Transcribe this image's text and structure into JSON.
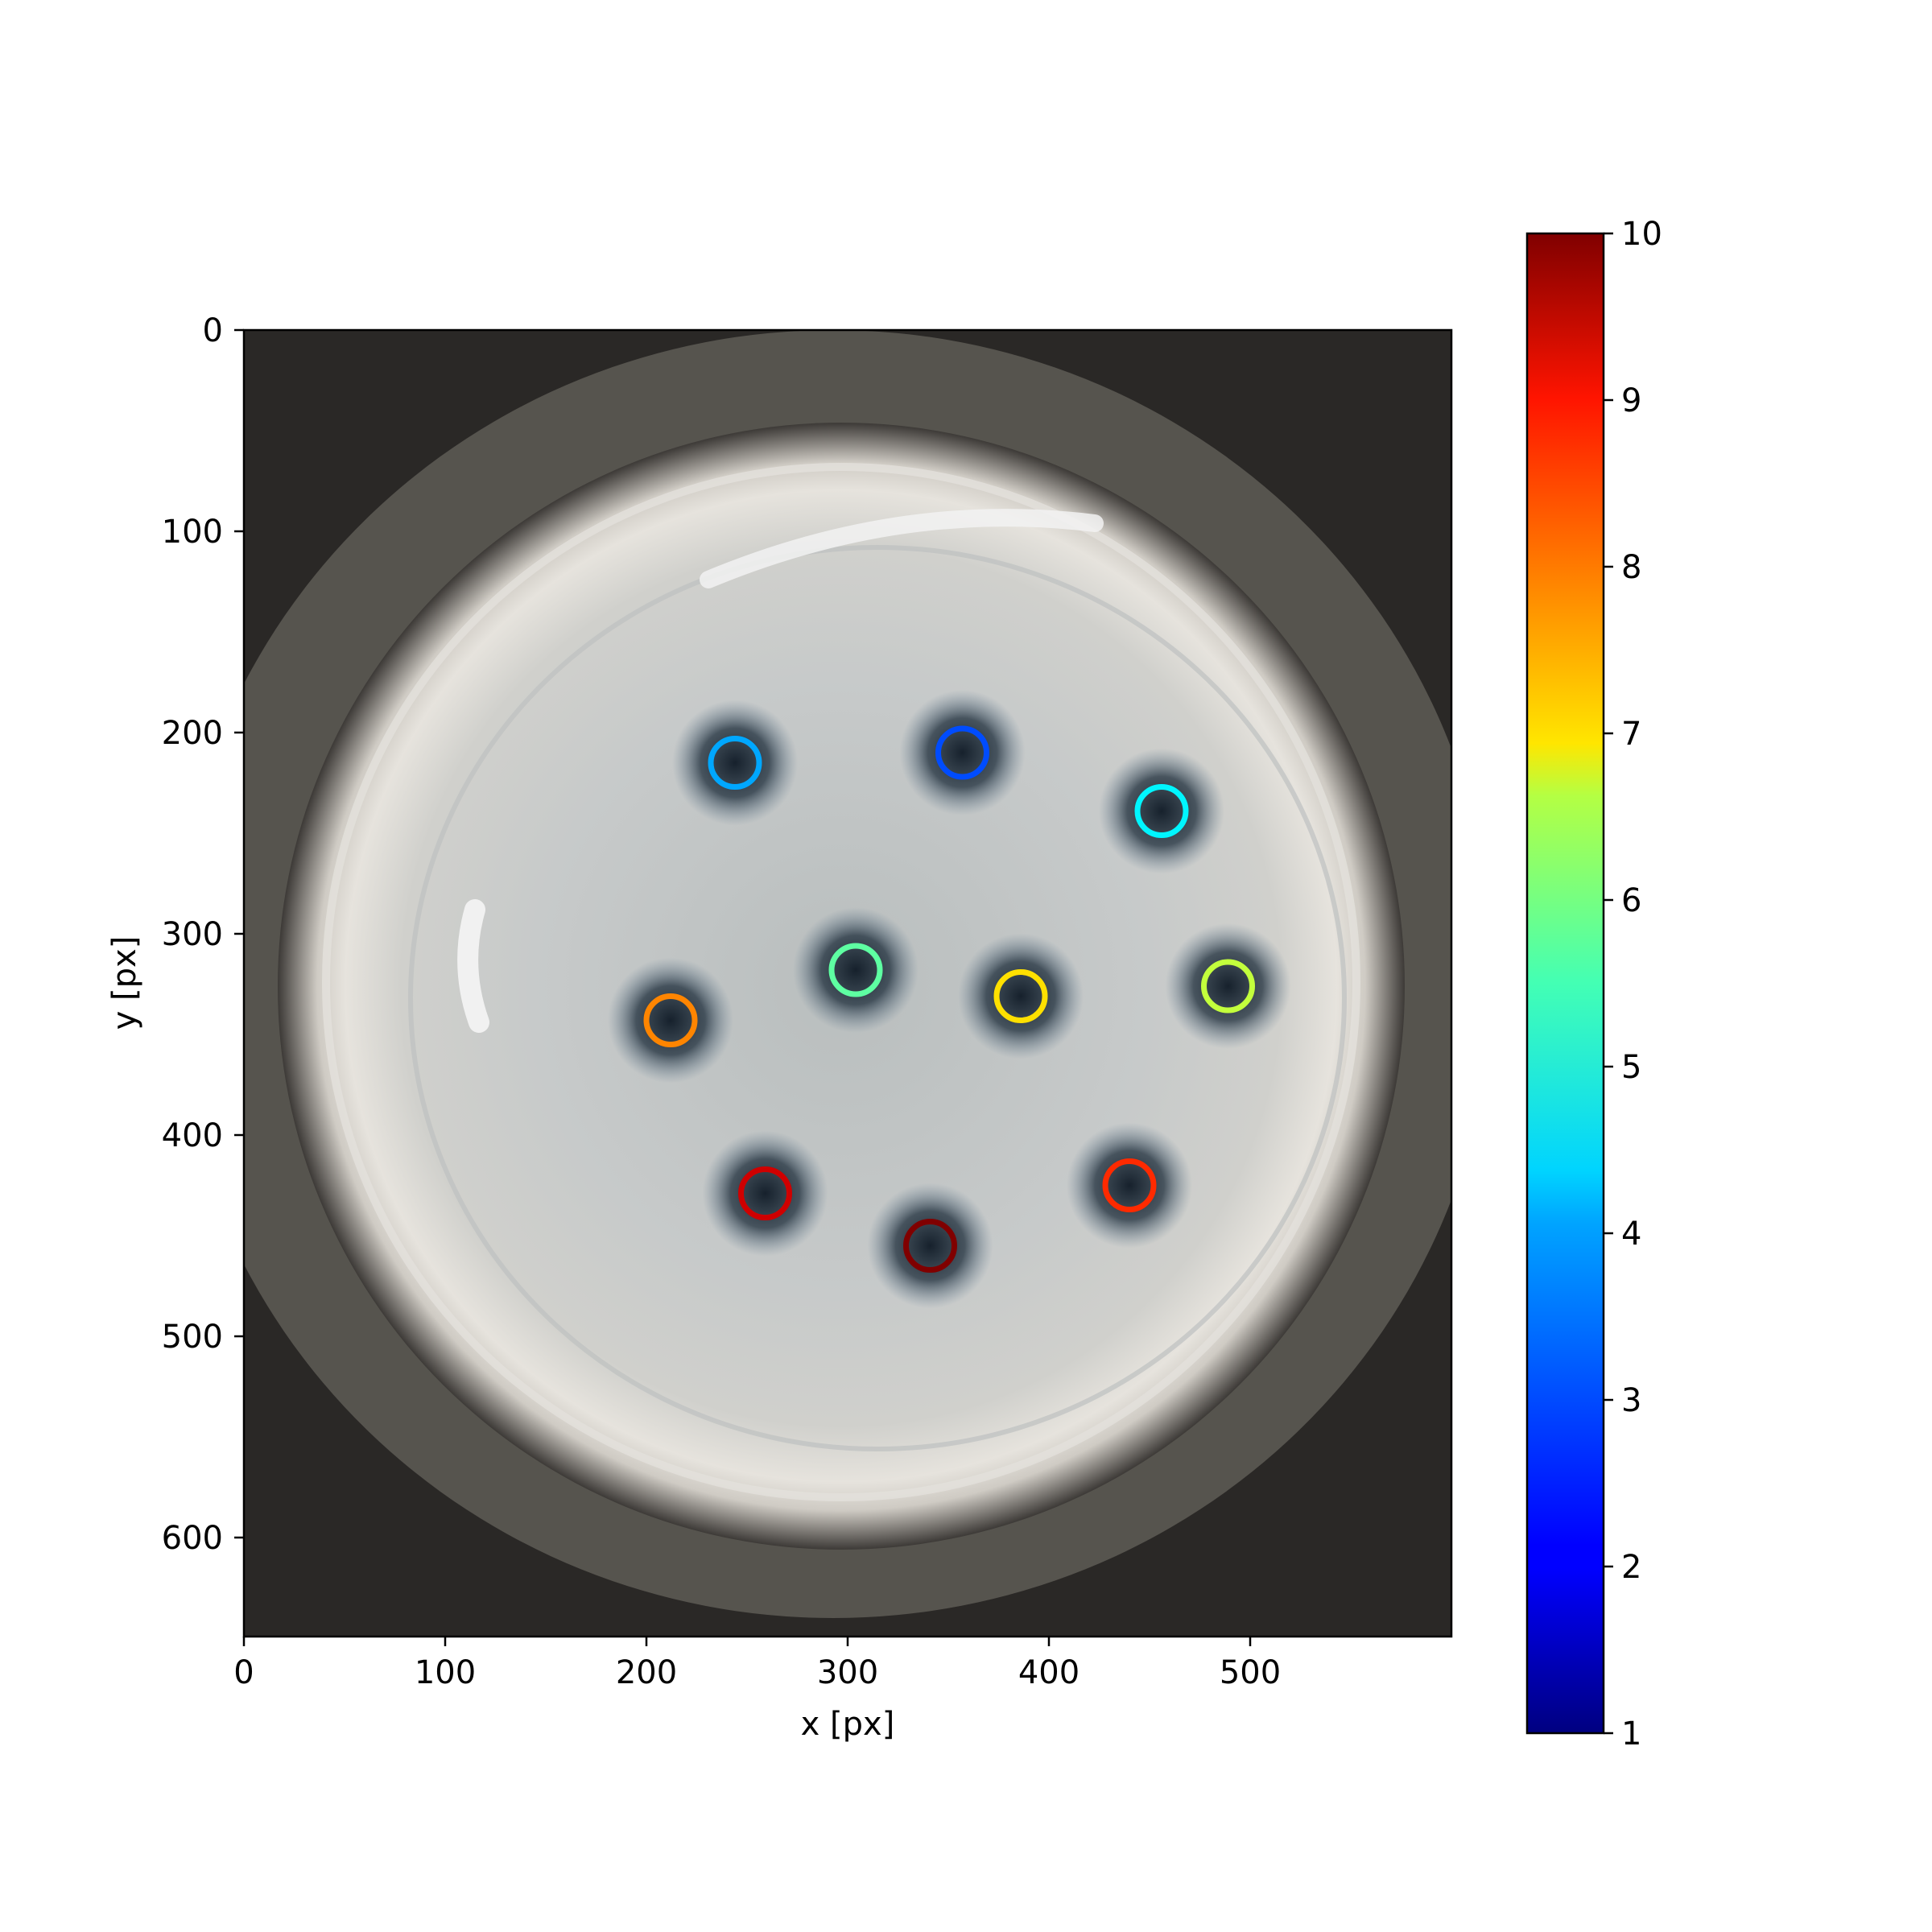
{
  "chart_data": {
    "type": "scatter",
    "background": "photograph of a white circular dish with dark spots",
    "xlabel": "x [px]",
    "ylabel": "y [px]",
    "xlim": [
      0,
      600
    ],
    "ylim": [
      650,
      0
    ],
    "x_ticks": [
      0,
      100,
      200,
      300,
      400,
      500
    ],
    "y_ticks": [
      0,
      100,
      200,
      300,
      400,
      500,
      600
    ],
    "grid": false,
    "points": [
      {
        "x": 244,
        "y": 215,
        "c": 3.6
      },
      {
        "x": 357,
        "y": 210,
        "c": 2.8
      },
      {
        "x": 456,
        "y": 239,
        "c": 4.3
      },
      {
        "x": 304,
        "y": 318,
        "c": 5.2
      },
      {
        "x": 489,
        "y": 326,
        "c": 6.1
      },
      {
        "x": 386,
        "y": 331,
        "c": 6.9
      },
      {
        "x": 212,
        "y": 343,
        "c": 7.7
      },
      {
        "x": 440,
        "y": 425,
        "c": 8.5
      },
      {
        "x": 259,
        "y": 429,
        "c": 9.3
      },
      {
        "x": 341,
        "y": 455,
        "c": 10.0
      }
    ],
    "colorbar": {
      "colormap": "jet",
      "range": [
        1,
        10
      ],
      "ticks": [
        1,
        2,
        3,
        4,
        5,
        6,
        7,
        8,
        9,
        10
      ]
    }
  }
}
